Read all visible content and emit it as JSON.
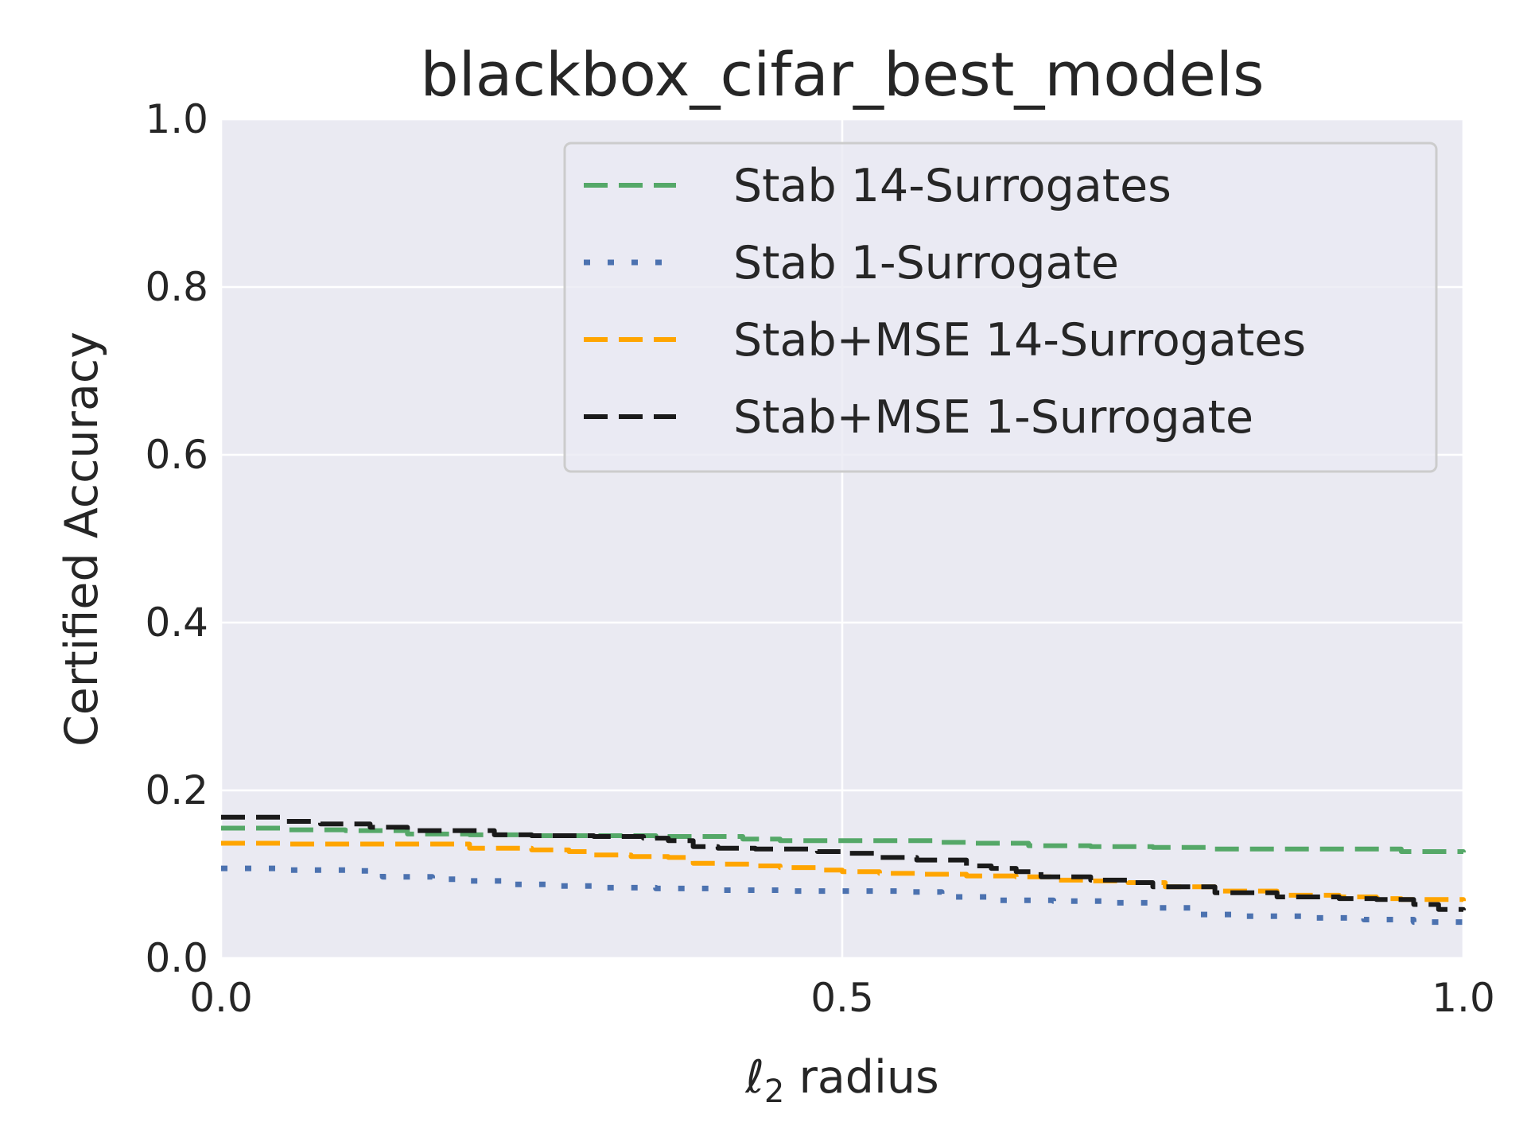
{
  "chart_data": {
    "type": "line",
    "title": "blackbox_cifar_best_models",
    "xlabel_symbol": "ℓ",
    "xlabel_subscript": "2",
    "xlabel_rest": " radius",
    "ylabel": "Certified Accuracy",
    "xlim": [
      0.0,
      1.0
    ],
    "ylim": [
      0.0,
      1.0
    ],
    "xticks": [
      0.0,
      0.5,
      1.0
    ],
    "xtick_labels": [
      "0.0",
      "0.5",
      "1.0"
    ],
    "yticks": [
      0.0,
      0.2,
      0.4,
      0.6,
      0.8,
      1.0
    ],
    "ytick_labels": [
      "0.0",
      "0.2",
      "0.4",
      "0.6",
      "0.8",
      "1.0"
    ],
    "grid": true,
    "legend_position": "top-right",
    "series": [
      {
        "name": "Stab 14-Surrogates",
        "color": "#55a868",
        "style": "dashed",
        "x": [
          0.0,
          0.05,
          0.1,
          0.15,
          0.2,
          0.25,
          0.3,
          0.35,
          0.4,
          0.42,
          0.45,
          0.5,
          0.55,
          0.58,
          0.6,
          0.65,
          0.7,
          0.75,
          0.8,
          0.85,
          0.9,
          0.93,
          0.95,
          1.0
        ],
        "y": [
          0.155,
          0.153,
          0.152,
          0.148,
          0.147,
          0.146,
          0.146,
          0.145,
          0.145,
          0.142,
          0.14,
          0.14,
          0.14,
          0.138,
          0.137,
          0.134,
          0.133,
          0.132,
          0.13,
          0.13,
          0.13,
          0.13,
          0.127,
          0.126
        ]
      },
      {
        "name": "Stab 1-Surrogate",
        "color": "#4c72b0",
        "style": "dotted",
        "x": [
          0.0,
          0.05,
          0.1,
          0.13,
          0.17,
          0.2,
          0.23,
          0.27,
          0.3,
          0.35,
          0.4,
          0.45,
          0.5,
          0.55,
          0.58,
          0.62,
          0.67,
          0.72,
          0.75,
          0.78,
          0.82,
          0.87,
          0.92,
          0.96,
          1.0
        ],
        "y": [
          0.107,
          0.105,
          0.104,
          0.097,
          0.094,
          0.092,
          0.088,
          0.086,
          0.084,
          0.083,
          0.081,
          0.08,
          0.08,
          0.079,
          0.073,
          0.069,
          0.068,
          0.066,
          0.06,
          0.052,
          0.05,
          0.048,
          0.046,
          0.043,
          0.04
        ]
      },
      {
        "name": "Stab+MSE 14-Surrogates",
        "color": "#ffa500",
        "style": "dashed",
        "x": [
          0.0,
          0.05,
          0.1,
          0.15,
          0.19,
          0.2,
          0.25,
          0.28,
          0.3,
          0.33,
          0.36,
          0.38,
          0.4,
          0.43,
          0.45,
          0.48,
          0.5,
          0.53,
          0.56,
          0.6,
          0.64,
          0.67,
          0.7,
          0.73,
          0.76,
          0.8,
          0.85,
          0.9,
          0.93,
          0.95,
          1.0
        ],
        "y": [
          0.137,
          0.136,
          0.136,
          0.136,
          0.136,
          0.131,
          0.129,
          0.127,
          0.123,
          0.121,
          0.12,
          0.113,
          0.112,
          0.11,
          0.108,
          0.105,
          0.103,
          0.101,
          0.1,
          0.098,
          0.097,
          0.093,
          0.092,
          0.09,
          0.085,
          0.08,
          0.075,
          0.073,
          0.071,
          0.07,
          0.068
        ]
      },
      {
        "name": "Stab+MSE 1-Surrogate",
        "color": "#1a1a1a",
        "style": "dashed",
        "x": [
          0.0,
          0.02,
          0.05,
          0.08,
          0.12,
          0.15,
          0.2,
          0.22,
          0.25,
          0.3,
          0.34,
          0.36,
          0.38,
          0.4,
          0.43,
          0.45,
          0.48,
          0.5,
          0.53,
          0.56,
          0.6,
          0.62,
          0.64,
          0.66,
          0.7,
          0.73,
          0.75,
          0.8,
          0.85,
          0.9,
          0.93,
          0.96,
          0.98,
          1.0
        ],
        "y": [
          0.168,
          0.168,
          0.163,
          0.16,
          0.156,
          0.152,
          0.152,
          0.147,
          0.146,
          0.145,
          0.143,
          0.14,
          0.133,
          0.131,
          0.13,
          0.13,
          0.127,
          0.125,
          0.12,
          0.117,
          0.11,
          0.107,
          0.103,
          0.097,
          0.093,
          0.09,
          0.085,
          0.078,
          0.073,
          0.071,
          0.07,
          0.064,
          0.058,
          0.057
        ]
      }
    ]
  }
}
